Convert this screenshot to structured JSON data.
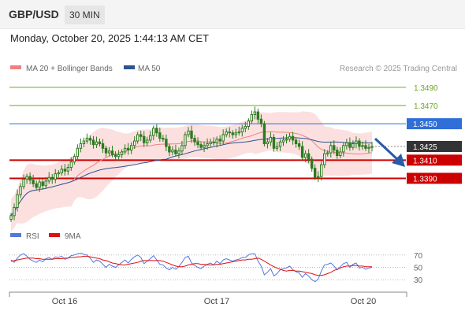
{
  "header": {
    "pair": "GBP/USD",
    "timeframe": "30 MIN",
    "datetime": "Monday, October 20, 2025 1:44:13 AM CET"
  },
  "legend": {
    "ma20_bb": "MA 20 + Bollinger Bands",
    "ma50": "MA 50",
    "credit": "Research © 2025 Trading Central"
  },
  "levels": [
    {
      "label": "1.3490",
      "value": 1.349,
      "kind": "target"
    },
    {
      "label": "1.3470",
      "value": 1.347,
      "kind": "target"
    },
    {
      "label": "1.3450",
      "value": 1.345,
      "kind": "pivot"
    },
    {
      "label": "1.3425",
      "value": 1.3425,
      "kind": "current"
    },
    {
      "label": "1.3410",
      "value": 1.341,
      "kind": "support"
    },
    {
      "label": "1.3390",
      "value": 1.339,
      "kind": "support"
    }
  ],
  "colors": {
    "target": "#6aaa1e",
    "pivot": "#2f6fd8",
    "support": "#cc0000",
    "current_bg": "#333333",
    "candle": "#2c7a1e",
    "bb_fill": "#fbd6d6",
    "ma20": "#f08080",
    "ma50": "#2c5590",
    "rsi": "#5577dd",
    "rsi_ma": "#dd1111",
    "arrow": "#2a5aa8"
  },
  "rsi_legend": {
    "rsi": "RSI",
    "ma": "9MA"
  },
  "rsi_levels": [
    "70",
    "50",
    "30"
  ],
  "chart_data": {
    "type": "candlestick",
    "title": "GBP/USD 30 MIN",
    "x_labels": [
      "Oct 16",
      "Oct 17",
      "Oct 20"
    ],
    "ylim": [
      1.3348,
      1.3502
    ],
    "current_price": 1.3425,
    "resistance": [
      1.349,
      1.347
    ],
    "pivot": 1.345,
    "support": [
      1.341,
      1.339
    ],
    "close": [
      1.3349,
      1.3358,
      1.3372,
      1.3381,
      1.3389,
      1.3392,
      1.3388,
      1.3384,
      1.338,
      1.3386,
      1.3382,
      1.3387,
      1.3391,
      1.3389,
      1.3395,
      1.3396,
      1.34,
      1.3398,
      1.3402,
      1.3408,
      1.3414,
      1.3423,
      1.3428,
      1.3431,
      1.3434,
      1.3432,
      1.3427,
      1.343,
      1.3428,
      1.3423,
      1.3418,
      1.342,
      1.3416,
      1.3414,
      1.3416,
      1.3419,
      1.3423,
      1.3421,
      1.3426,
      1.3431,
      1.3438,
      1.3436,
      1.3429,
      1.3432,
      1.3437,
      1.3445,
      1.344,
      1.3434,
      1.3433,
      1.3425,
      1.3419,
      1.3421,
      1.3417,
      1.342,
      1.3426,
      1.3438,
      1.3442,
      1.3434,
      1.343,
      1.3427,
      1.3424,
      1.3426,
      1.3428,
      1.343,
      1.3429,
      1.3433,
      1.3431,
      1.3438,
      1.3441,
      1.344,
      1.3438,
      1.344,
      1.3441,
      1.3445,
      1.3447,
      1.3453,
      1.346,
      1.3463,
      1.3455,
      1.345,
      1.3428,
      1.343,
      1.3435,
      1.3423,
      1.3425,
      1.343,
      1.3432,
      1.3433,
      1.3436,
      1.3432,
      1.3428,
      1.3425,
      1.3413,
      1.3417,
      1.3411,
      1.3401,
      1.3391,
      1.3392,
      1.3405,
      1.3417,
      1.3418,
      1.3426,
      1.3421,
      1.3415,
      1.3419,
      1.3426,
      1.3429,
      1.3424,
      1.3428,
      1.3431,
      1.3425,
      1.3426,
      1.3423,
      1.3424,
      1.3425
    ],
    "rsi": [
      62,
      58,
      65,
      70,
      72,
      68,
      63,
      60,
      58,
      62,
      59,
      64,
      66,
      63,
      67,
      66,
      68,
      63,
      65,
      69,
      70,
      72,
      73,
      71,
      70,
      65,
      58,
      62,
      60,
      55,
      50,
      55,
      52,
      50,
      54,
      58,
      62,
      57,
      63,
      67,
      70,
      66,
      56,
      60,
      64,
      69,
      62,
      55,
      54,
      49,
      46,
      50,
      47,
      51,
      58,
      66,
      68,
      57,
      53,
      50,
      48,
      52,
      55,
      57,
      54,
      60,
      56,
      62,
      64,
      62,
      60,
      62,
      63,
      66,
      66,
      70,
      72,
      72,
      60,
      52,
      38,
      42,
      48,
      36,
      40,
      46,
      48,
      49,
      52,
      46,
      43,
      41,
      34,
      40,
      36,
      30,
      27,
      31,
      44,
      54,
      55,
      57,
      52,
      46,
      51,
      56,
      58,
      50,
      55,
      57,
      49,
      50,
      47,
      49,
      50
    ],
    "rsi_ma": [
      60,
      61,
      62,
      63,
      64,
      65,
      65,
      65,
      64,
      64,
      63,
      63,
      63,
      63,
      64,
      64,
      64,
      65,
      65,
      66,
      66,
      67,
      67,
      68,
      68,
      67,
      66,
      65,
      64,
      62,
      61,
      59,
      57,
      56,
      55,
      54,
      54,
      55,
      56,
      57,
      58,
      60,
      61,
      61,
      61,
      61,
      61,
      61,
      60,
      58,
      56,
      54,
      52,
      51,
      51,
      52,
      54,
      55,
      56,
      56,
      55,
      55,
      54,
      54,
      54,
      55,
      55,
      56,
      57,
      58,
      59,
      60,
      61,
      62,
      62,
      63,
      63,
      64,
      65,
      63,
      60,
      57,
      54,
      51,
      49,
      47,
      45,
      44,
      45,
      45,
      44,
      44,
      43,
      42,
      41,
      40,
      38,
      37,
      37,
      38,
      40,
      42,
      45,
      47,
      49,
      51,
      52,
      52,
      53,
      53,
      52,
      52,
      51,
      51,
      51
    ]
  }
}
